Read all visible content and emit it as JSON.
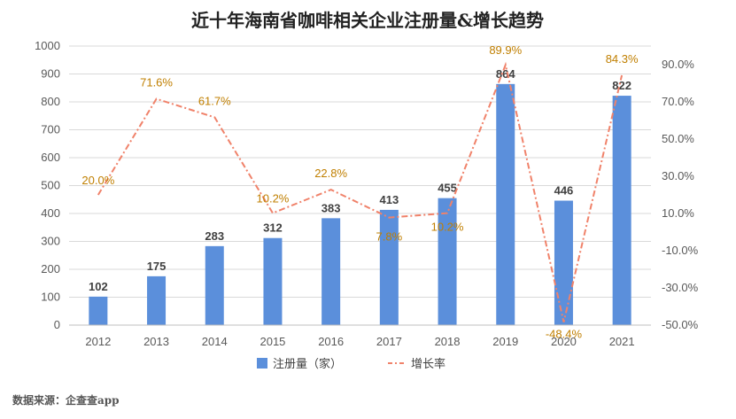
{
  "chart_data": {
    "type": "bar",
    "title": "近十年海南省咖啡相关企业注册量&增长趋势",
    "categories": [
      "2012",
      "2013",
      "2014",
      "2015",
      "2016",
      "2017",
      "2018",
      "2019",
      "2020",
      "2021"
    ],
    "series": [
      {
        "name": "注册量（家）",
        "type": "bar",
        "axis": "left",
        "color": "#5b8fdb",
        "values": [
          102,
          175,
          283,
          312,
          383,
          413,
          455,
          864,
          446,
          822
        ],
        "labels": [
          "102",
          "175",
          "283",
          "312",
          "383",
          "413",
          "455",
          "864",
          "446",
          "822"
        ]
      },
      {
        "name": "增长率",
        "type": "line",
        "axis": "right",
        "style": "dash-dot",
        "color": "#f0826a",
        "values": [
          20.0,
          71.6,
          61.7,
          10.2,
          22.8,
          7.8,
          10.2,
          89.9,
          -48.4,
          84.3
        ],
        "labels": [
          "20.0%",
          "71.6%",
          "61.7%",
          "10.2%",
          "22.8%",
          "7.8%",
          "10.2%",
          "89.9%",
          "-48.4%",
          "84.3%"
        ]
      }
    ],
    "y_left": {
      "ylim": [
        0,
        1000
      ],
      "ticks": [
        "0",
        "100",
        "200",
        "300",
        "400",
        "500",
        "600",
        "700",
        "800",
        "900",
        "1000"
      ]
    },
    "y_right": {
      "ylim": [
        -50,
        100
      ],
      "ticks": [
        "-50.0%",
        "-30.0%",
        "-10.0%",
        "10.0%",
        "30.0%",
        "50.0%",
        "70.0%",
        "90.0%"
      ]
    },
    "grid": true,
    "legend": "bottom",
    "label_color": "#c07f00"
  },
  "source": "数据来源：企查查app"
}
